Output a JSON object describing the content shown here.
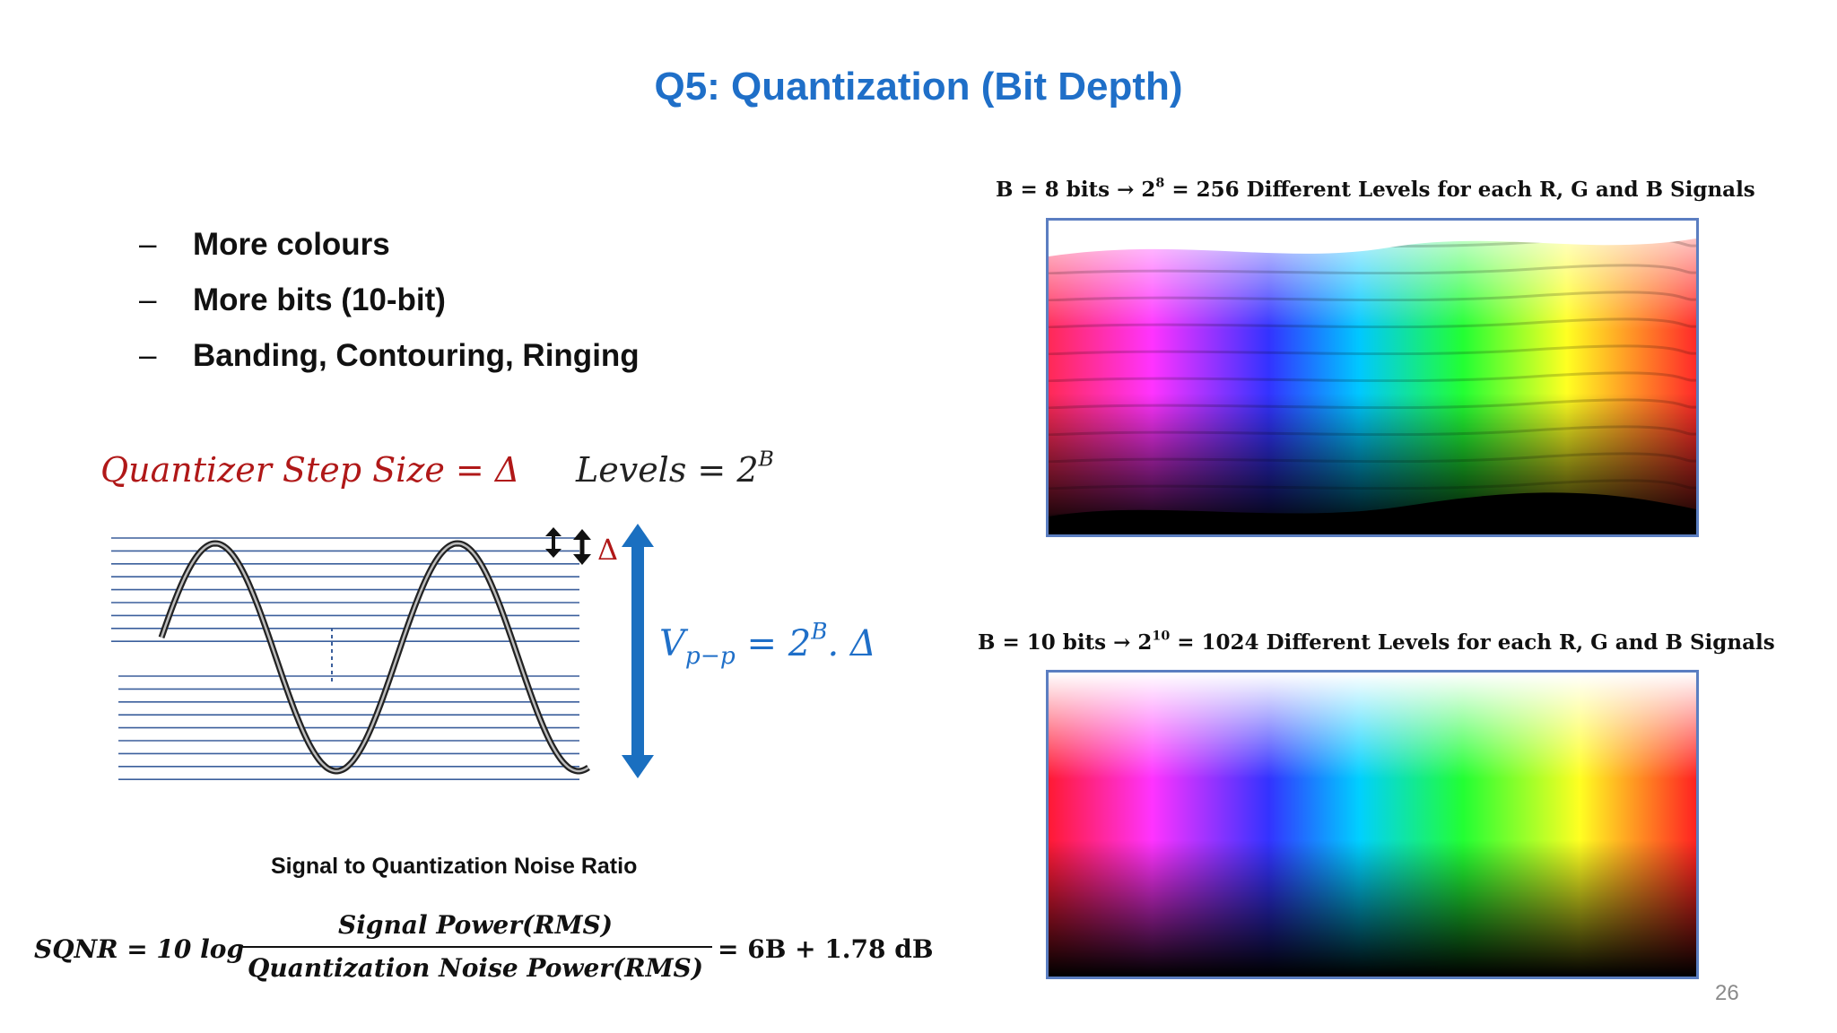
{
  "slide": {
    "title": "Q5: Quantization (Bit Depth)",
    "page_number": "26"
  },
  "bullets": [
    {
      "dash": "–",
      "text": "More colours"
    },
    {
      "dash": "–",
      "text": "More bits (10-bit)"
    },
    {
      "dash": "–",
      "text": "Banding, Contouring, Ringing"
    }
  ],
  "quantizer": {
    "step_size_label": "Quantizer Step Size = Δ",
    "levels_label": "Levels = 2",
    "levels_exp": "B",
    "delta_marker": "Δ",
    "vpp_prefix": "V",
    "vpp_sub": "p−p",
    "vpp_eq": " = 2",
    "vpp_exp": "B",
    "vpp_suffix": ". Δ"
  },
  "colors": {
    "title_blue": "#1f6fc8",
    "delta_red": "#b01818",
    "arrow_blue": "#1a6fc0",
    "grid_blue": "#3b5f9c",
    "box_border": "#5b7ec1"
  },
  "bit8": {
    "caption_prefix": "B = 8 bits  →  2",
    "caption_exp": "8",
    "caption_suffix": " = 256 Different Levels for each R, G and B Signals"
  },
  "bit10": {
    "caption_prefix": "B = 10 bits  →  2",
    "caption_exp": "10",
    "caption_suffix": " = 1024 Different Levels for each R, G and B Signals"
  },
  "sqnr": {
    "label": "Signal to Quantization Noise Ratio",
    "lhs": "SQNR  = 10 log",
    "numerator": "Signal Power(RMS)",
    "denominator": "Quantization Noise Power(RMS)",
    "rhs": "= 6B + 1.78   dB"
  }
}
